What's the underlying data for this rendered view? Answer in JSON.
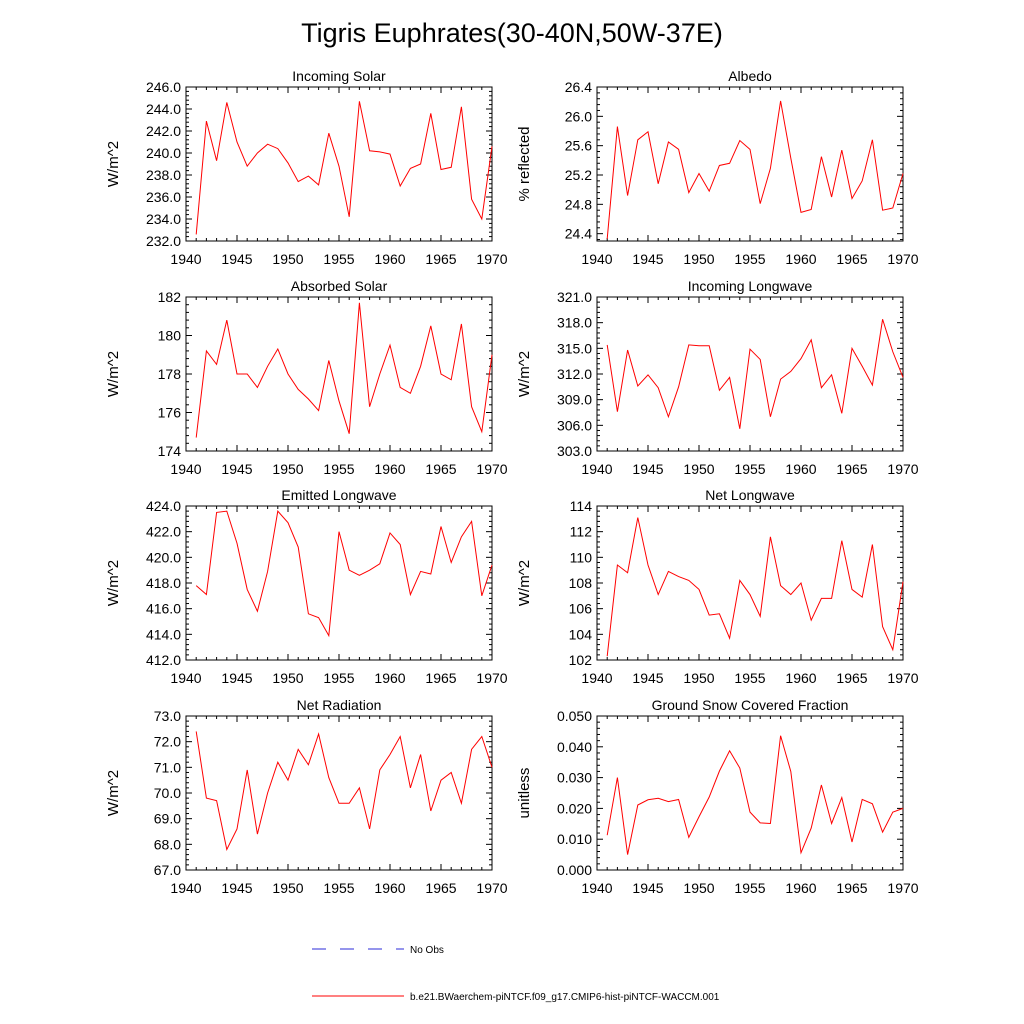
{
  "figure": {
    "title": "Tigris Euphrates(30-40N,50W-37E)",
    "series_color": "#ff0000",
    "obs_color": "#2b2bd9"
  },
  "legend": {
    "obs_label": "No Obs",
    "model_label": "b.e21.BWaerchem-piNTCF.f09_g17.CMIP6-hist-piNTCF-WACCM.001"
  },
  "chart_data": [
    {
      "type": "line",
      "title": "Incoming Solar",
      "ylabel": "W/m^2",
      "xlim": [
        1940,
        1970
      ],
      "ylim": [
        232.0,
        246.0
      ],
      "yticks": [
        232.0,
        234.0,
        236.0,
        238.0,
        240.0,
        242.0,
        244.0,
        246.0
      ],
      "ydecimals": 1,
      "xticks": [
        1940,
        1945,
        1950,
        1955,
        1960,
        1965,
        1970
      ],
      "x": [
        1941,
        1942,
        1943,
        1944,
        1945,
        1946,
        1947,
        1948,
        1949,
        1950,
        1951,
        1952,
        1953,
        1954,
        1955,
        1956,
        1957,
        1958,
        1959,
        1960,
        1961,
        1962,
        1963,
        1964,
        1965,
        1966,
        1967,
        1968,
        1969,
        1970
      ],
      "series": [
        {
          "values": [
            232.6,
            242.9,
            239.3,
            244.6,
            241.0,
            238.8,
            240.0,
            240.8,
            240.4,
            239.1,
            237.4,
            237.9,
            237.1,
            241.8,
            238.8,
            234.2,
            244.7,
            240.2,
            240.1,
            239.9,
            237.0,
            238.6,
            239.0,
            243.6,
            238.5,
            238.7,
            244.2,
            235.8,
            234.0,
            240.6
          ]
        }
      ]
    },
    {
      "type": "line",
      "title": "Albedo",
      "ylabel": "% reflected",
      "xlim": [
        1940,
        1970
      ],
      "ylim": [
        24.3,
        26.4
      ],
      "yticks": [
        24.4,
        24.8,
        25.2,
        25.6,
        26.0,
        26.4
      ],
      "ydecimals": 1,
      "xticks": [
        1940,
        1945,
        1950,
        1955,
        1960,
        1965,
        1970
      ],
      "x": [
        1941,
        1942,
        1943,
        1944,
        1945,
        1946,
        1947,
        1948,
        1949,
        1950,
        1951,
        1952,
        1953,
        1954,
        1955,
        1956,
        1957,
        1958,
        1959,
        1960,
        1961,
        1962,
        1963,
        1964,
        1965,
        1966,
        1967,
        1968,
        1969,
        1970
      ],
      "series": [
        {
          "values": [
            24.33,
            25.86,
            24.92,
            25.68,
            25.79,
            25.08,
            25.65,
            25.55,
            24.96,
            25.22,
            24.98,
            25.33,
            25.36,
            25.67,
            25.55,
            24.81,
            25.29,
            26.21,
            25.43,
            24.69,
            24.73,
            25.45,
            24.9,
            25.54,
            24.88,
            25.12,
            25.68,
            24.72,
            24.75,
            25.22
          ]
        }
      ]
    },
    {
      "type": "line",
      "title": "Absorbed Solar",
      "ylabel": "W/m^2",
      "xlim": [
        1940,
        1970
      ],
      "ylim": [
        174,
        182
      ],
      "yticks": [
        174,
        176,
        178,
        180,
        182
      ],
      "ydecimals": 0,
      "xticks": [
        1940,
        1945,
        1950,
        1955,
        1960,
        1965,
        1970
      ],
      "x": [
        1941,
        1942,
        1943,
        1944,
        1945,
        1946,
        1947,
        1948,
        1949,
        1950,
        1951,
        1952,
        1953,
        1954,
        1955,
        1956,
        1957,
        1958,
        1959,
        1960,
        1961,
        1962,
        1963,
        1964,
        1965,
        1966,
        1967,
        1968,
        1969,
        1970
      ],
      "series": [
        {
          "values": [
            174.7,
            179.2,
            178.5,
            180.8,
            178.0,
            178.0,
            177.3,
            178.4,
            179.3,
            178.0,
            177.2,
            176.7,
            176.1,
            178.7,
            176.6,
            174.9,
            181.7,
            176.3,
            178.0,
            179.5,
            177.3,
            177.0,
            178.4,
            180.5,
            178.0,
            177.7,
            180.6,
            176.3,
            175.0,
            179.0
          ]
        }
      ]
    },
    {
      "type": "line",
      "title": "Incoming Longwave",
      "ylabel": "W/m^2",
      "xlim": [
        1940,
        1970
      ],
      "ylim": [
        303.0,
        321.0
      ],
      "yticks": [
        303.0,
        306.0,
        309.0,
        312.0,
        315.0,
        318.0,
        321.0
      ],
      "ydecimals": 1,
      "xticks": [
        1940,
        1945,
        1950,
        1955,
        1960,
        1965,
        1970
      ],
      "x": [
        1941,
        1942,
        1943,
        1944,
        1945,
        1946,
        1947,
        1948,
        1949,
        1950,
        1951,
        1952,
        1953,
        1954,
        1955,
        1956,
        1957,
        1958,
        1959,
        1960,
        1961,
        1962,
        1963,
        1964,
        1965,
        1966,
        1967,
        1968,
        1969,
        1970
      ],
      "series": [
        {
          "values": [
            315.4,
            307.6,
            314.8,
            310.6,
            311.9,
            310.4,
            307.0,
            310.5,
            315.4,
            315.3,
            315.3,
            310.1,
            311.6,
            305.6,
            314.9,
            313.7,
            307.0,
            311.4,
            312.3,
            313.8,
            316.0,
            310.4,
            311.9,
            307.4,
            315.0,
            312.9,
            310.7,
            318.4,
            314.6,
            311.6
          ]
        }
      ]
    },
    {
      "type": "line",
      "title": "Emitted Longwave",
      "ylabel": "W/m^2",
      "xlim": [
        1940,
        1970
      ],
      "ylim": [
        412.0,
        424.0
      ],
      "yticks": [
        412.0,
        414.0,
        416.0,
        418.0,
        420.0,
        422.0,
        424.0
      ],
      "ydecimals": 1,
      "xticks": [
        1940,
        1945,
        1950,
        1955,
        1960,
        1965,
        1970
      ],
      "x": [
        1941,
        1942,
        1943,
        1944,
        1945,
        1946,
        1947,
        1948,
        1949,
        1950,
        1951,
        1952,
        1953,
        1954,
        1955,
        1956,
        1957,
        1958,
        1959,
        1960,
        1961,
        1962,
        1963,
        1964,
        1965,
        1966,
        1967,
        1968,
        1969,
        1970
      ],
      "series": [
        {
          "values": [
            417.8,
            417.1,
            423.5,
            423.6,
            421.1,
            417.5,
            415.8,
            418.9,
            423.6,
            422.7,
            420.8,
            415.6,
            415.3,
            413.9,
            422.0,
            419.0,
            418.6,
            419.0,
            419.5,
            421.9,
            421.0,
            417.1,
            418.9,
            418.7,
            422.4,
            419.6,
            421.6,
            422.8,
            417.0,
            419.4
          ]
        }
      ]
    },
    {
      "type": "line",
      "title": "Net Longwave",
      "ylabel": "W/m^2",
      "xlim": [
        1940,
        1970
      ],
      "ylim": [
        102,
        114
      ],
      "yticks": [
        102,
        104,
        106,
        108,
        110,
        112,
        114
      ],
      "ydecimals": 0,
      "xticks": [
        1940,
        1945,
        1950,
        1955,
        1960,
        1965,
        1970
      ],
      "x": [
        1941,
        1942,
        1943,
        1944,
        1945,
        1946,
        1947,
        1948,
        1949,
        1950,
        1951,
        1952,
        1953,
        1954,
        1955,
        1956,
        1957,
        1958,
        1959,
        1960,
        1961,
        1962,
        1963,
        1964,
        1965,
        1966,
        1967,
        1968,
        1969,
        1970
      ],
      "series": [
        {
          "values": [
            102.3,
            109.4,
            108.8,
            113.1,
            109.4,
            107.1,
            108.9,
            108.5,
            108.2,
            107.5,
            105.5,
            105.6,
            103.7,
            108.2,
            107.1,
            105.4,
            111.6,
            107.8,
            107.1,
            108.0,
            105.1,
            106.8,
            106.8,
            111.3,
            107.5,
            106.9,
            111.0,
            104.6,
            102.8,
            108.1
          ]
        }
      ]
    },
    {
      "type": "line",
      "title": "Net Radiation",
      "ylabel": "W/m^2",
      "xlim": [
        1940,
        1970
      ],
      "ylim": [
        67.0,
        73.0
      ],
      "yticks": [
        67.0,
        68.0,
        69.0,
        70.0,
        71.0,
        72.0,
        73.0
      ],
      "ydecimals": 1,
      "xticks": [
        1940,
        1945,
        1950,
        1955,
        1960,
        1965,
        1970
      ],
      "x": [
        1941,
        1942,
        1943,
        1944,
        1945,
        1946,
        1947,
        1948,
        1949,
        1950,
        1951,
        1952,
        1953,
        1954,
        1955,
        1956,
        1957,
        1958,
        1959,
        1960,
        1961,
        1962,
        1963,
        1964,
        1965,
        1966,
        1967,
        1968,
        1969,
        1970
      ],
      "series": [
        {
          "values": [
            72.4,
            69.8,
            69.7,
            67.8,
            68.6,
            70.9,
            68.4,
            70.0,
            71.2,
            70.5,
            71.7,
            71.1,
            72.3,
            70.6,
            69.6,
            69.6,
            70.2,
            68.6,
            70.9,
            71.5,
            72.2,
            70.2,
            71.5,
            69.3,
            70.5,
            70.8,
            69.6,
            71.7,
            72.2,
            71.0
          ]
        }
      ]
    },
    {
      "type": "line",
      "title": "Ground Snow Covered Fraction",
      "ylabel": "unitless",
      "xlim": [
        1940,
        1970
      ],
      "ylim": [
        0.0,
        0.05
      ],
      "yticks": [
        0.0,
        0.01,
        0.02,
        0.03,
        0.04,
        0.05
      ],
      "ydecimals": 3,
      "xticks": [
        1940,
        1945,
        1950,
        1955,
        1960,
        1965,
        1970
      ],
      "x": [
        1941,
        1942,
        1943,
        1944,
        1945,
        1946,
        1947,
        1948,
        1949,
        1950,
        1951,
        1952,
        1953,
        1954,
        1955,
        1956,
        1957,
        1958,
        1959,
        1960,
        1961,
        1962,
        1963,
        1964,
        1965,
        1966,
        1967,
        1968,
        1969,
        1970
      ],
      "series": [
        {
          "values": [
            0.0113,
            0.03,
            0.005,
            0.0211,
            0.0228,
            0.0233,
            0.0222,
            0.0229,
            0.0106,
            0.0173,
            0.0237,
            0.0321,
            0.0387,
            0.0331,
            0.0188,
            0.0153,
            0.0151,
            0.0436,
            0.032,
            0.0056,
            0.0136,
            0.0276,
            0.0151,
            0.0235,
            0.0091,
            0.0229,
            0.0215,
            0.0123,
            0.0188,
            0.02
          ]
        }
      ]
    }
  ]
}
